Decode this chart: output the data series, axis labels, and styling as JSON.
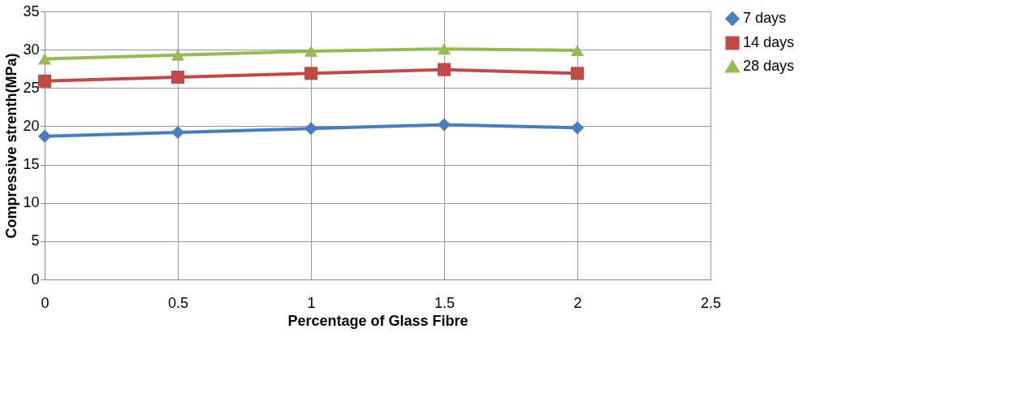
{
  "chart_data": {
    "type": "line",
    "xlabel": "Percentage of Glass Fibre",
    "ylabel": "Compressive strenth(MPa)",
    "x": [
      0,
      0.5,
      1,
      1.5,
      2
    ],
    "series": [
      {
        "name": "7 days",
        "color": "#4a7ebb",
        "marker": "diamond",
        "values": [
          18.7,
          19.2,
          19.7,
          20.2,
          19.8
        ]
      },
      {
        "name": "14 days",
        "color": "#be4b48",
        "marker": "square",
        "values": [
          25.9,
          26.4,
          26.9,
          27.4,
          26.9
        ]
      },
      {
        "name": "28 days",
        "color": "#98b954",
        "marker": "triangle",
        "values": [
          28.8,
          29.3,
          29.8,
          30.1,
          29.9
        ]
      }
    ],
    "xlim": [
      0,
      2.5
    ],
    "xticks": [
      0,
      0.5,
      1,
      1.5,
      2,
      2.5
    ],
    "ylim": [
      0,
      35
    ],
    "yticks": [
      0,
      5,
      10,
      15,
      20,
      25,
      30,
      35
    ],
    "grid": true,
    "legend": "right",
    "line_style": "solid"
  }
}
